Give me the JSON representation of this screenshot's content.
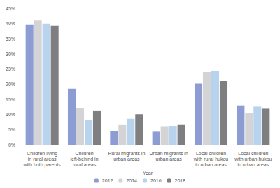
{
  "chart_data": {
    "type": "bar",
    "x_label": "Year",
    "categories": [
      "Children living in rural areas with both parents",
      "Children left-behind in rural areas",
      "Rural migrants in urban areas",
      "Urban migrants in urban areas",
      "Local children with rural hukou in urban areas",
      "Local children with urban hukou in urban areas"
    ],
    "series": [
      {
        "name": "2012",
        "color": "#8d9dd4",
        "values": [
          39.5,
          18.5,
          4.5,
          4.3,
          20.2,
          13.0
        ]
      },
      {
        "name": "2014",
        "color": "#d4d4d6",
        "values": [
          41.0,
          12.2,
          6.5,
          5.9,
          24.0,
          10.4
        ]
      },
      {
        "name": "2016",
        "color": "#b8d3ee",
        "values": [
          40.0,
          8.3,
          8.6,
          6.2,
          24.3,
          12.6
        ]
      },
      {
        "name": "2018",
        "color": "#7f7f82",
        "values": [
          39.3,
          11.1,
          10.1,
          6.5,
          21.0,
          11.9
        ]
      }
    ],
    "ylim": [
      0,
      45
    ],
    "yticks": [
      {
        "value": 0,
        "label": "0%"
      },
      {
        "value": 5,
        "label": "5%"
      },
      {
        "value": 10,
        "label": "10%"
      },
      {
        "value": 15,
        "label": "15%"
      },
      {
        "value": 20,
        "label": "20%"
      },
      {
        "value": 25,
        "label": "25%"
      },
      {
        "value": 30,
        "label": "30%"
      },
      {
        "value": 35,
        "label": "35%"
      },
      {
        "value": 40,
        "label": "40%"
      },
      {
        "value": 45,
        "label": "45%"
      }
    ],
    "grid": false,
    "legend": "bottom"
  }
}
